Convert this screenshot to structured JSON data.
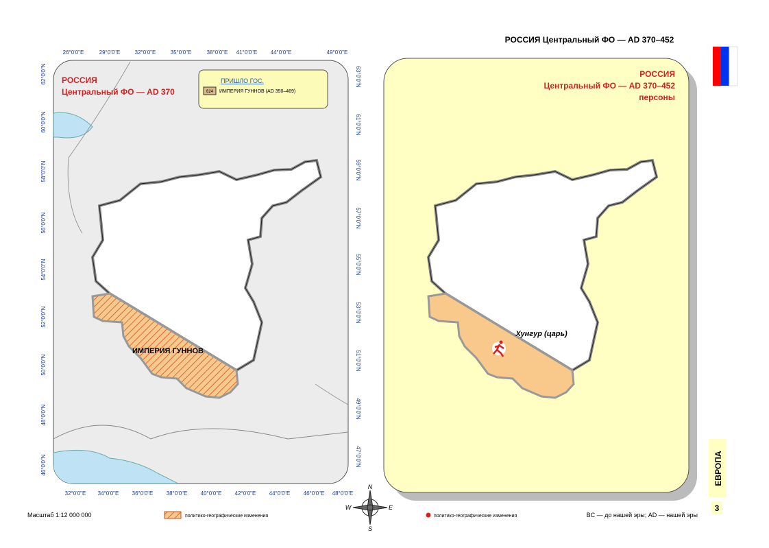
{
  "header": {
    "title": "РОССИЯ  Центральный ФО — AD 370–452"
  },
  "left_map": {
    "title": "РОССИЯ",
    "subtitle": "Центральный ФО — AD 370",
    "legend": {
      "heading": "ПРИШЛО ГОС.",
      "code": "624",
      "entry": "ИМПЕРИЯ ГУННОВ (AD 350–469)"
    },
    "region_label": "ИМПЕРИЯ ГУННОВ",
    "top_ticks": [
      "26°0'0\"E",
      "29°0'0\"E",
      "32°0'0\"E",
      "35°0'0\"E",
      "38°0'0\"E",
      "41°0'0\"E",
      "44°0'0\"E",
      "49°0'0\"E"
    ],
    "bottom_ticks": [
      "32°0'0\"E",
      "34°0'0\"E",
      "36°0'0\"E",
      "38°0'0\"E",
      "40°0'0\"E",
      "42°0'0\"E",
      "44°0'0\"E",
      "46°0'0\"E",
      "48°0'0\"E"
    ],
    "left_ticks": [
      "62°0'0\"N",
      "60°0'0\"N",
      "58°0'0\"N",
      "56°0'0\"N",
      "54°0'0\"N",
      "52°0'0\"N",
      "50°0'0\"N",
      "48°0'0\"N",
      "46°0'0\"N"
    ],
    "right_ticks": [
      "63°0'0\"N",
      "61°0'0\"N",
      "59°0'0\"N",
      "57°0'0\"N",
      "55°0'0\"N",
      "53°0'0\"N",
      "51°0'0\"N",
      "49°0'0\"N",
      "47°0'0\"N"
    ]
  },
  "right_map": {
    "title": "РОССИЯ",
    "subtitle": "Центральный ФО — AD 370–452",
    "caption": "персоны",
    "person_label": "Хунгур (царь)"
  },
  "compass": {
    "n": "N",
    "w": "W",
    "e": "E",
    "s": "S"
  },
  "footer": {
    "scale": "Масштаб 1:12 000 000",
    "legend_hatch": "политико-географические изменения",
    "legend_dot": "политико-географические изменения",
    "era_note": "BC — до нашей эры; AD — нашей эры"
  },
  "side": {
    "section": "ЕВРОПА",
    "page": "3"
  }
}
